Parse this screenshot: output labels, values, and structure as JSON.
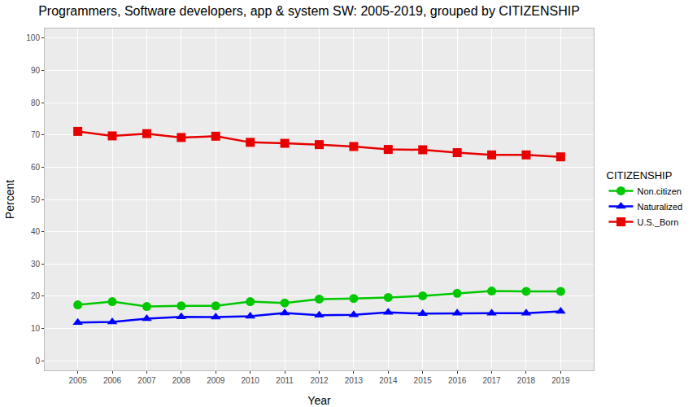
{
  "chart_data": {
    "type": "line",
    "title": "Programmers, Software developers, app & system SW: 2005-2019, grouped by CITIZENSHIP",
    "x_label": "Year",
    "y_label": "Percent",
    "legend_title": "CITIZENSHIP",
    "legend": "right",
    "grid": true,
    "categories": [
      "2005",
      "2006",
      "2007",
      "2008",
      "2009",
      "2010",
      "2011",
      "2012",
      "2013",
      "2014",
      "2015",
      "2016",
      "2017",
      "2018",
      "2019"
    ],
    "ylim": [
      -3,
      103
    ],
    "yticks": [
      0,
      10,
      20,
      30,
      40,
      50,
      60,
      70,
      80,
      90,
      100
    ],
    "series": [
      {
        "name": "Non.citizen",
        "color": "#00C800",
        "marker": "circle",
        "line_style": "solid",
        "values": [
          17.3,
          18.3,
          16.8,
          17.0,
          17.0,
          18.3,
          17.9,
          19.1,
          19.3,
          19.6,
          20.1,
          20.9,
          21.6,
          21.5,
          21.5
        ]
      },
      {
        "name": "Naturalized",
        "color": "#0000FF",
        "marker": "triangle-up",
        "line_style": "solid",
        "values": [
          11.8,
          12.0,
          13.0,
          13.6,
          13.5,
          13.8,
          14.8,
          14.1,
          14.2,
          15.0,
          14.6,
          14.7,
          14.7,
          14.7,
          15.3
        ]
      },
      {
        "name": "U.S._Born",
        "color": "#E80000",
        "marker": "square",
        "line_style": "solid",
        "values": [
          71.1,
          69.7,
          70.4,
          69.2,
          69.6,
          67.7,
          67.4,
          67.0,
          66.4,
          65.5,
          65.4,
          64.5,
          63.8,
          63.8,
          63.2
        ]
      }
    ]
  }
}
